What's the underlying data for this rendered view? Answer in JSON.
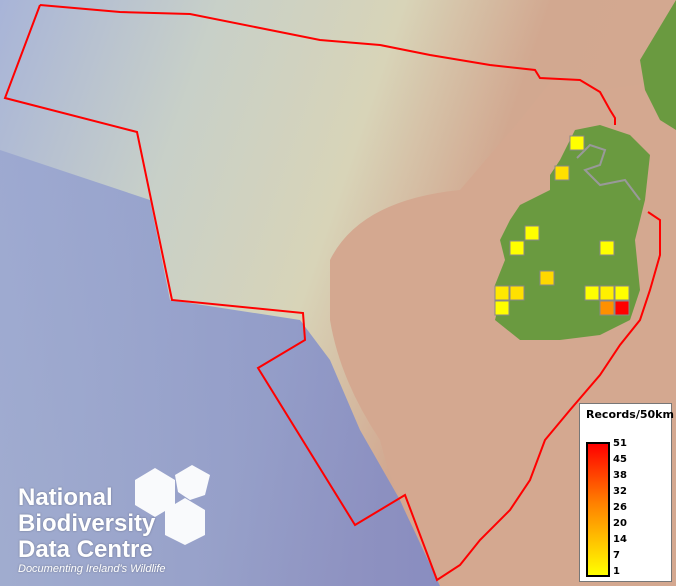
{
  "legend": {
    "title": "Records/50km",
    "ticks": [
      "51",
      "45",
      "38",
      "32",
      "26",
      "20",
      "14",
      "7",
      "1"
    ],
    "colors": {
      "low": "#ffff00",
      "mid": "#ff8000",
      "high": "#ff0000"
    }
  },
  "logo": {
    "line1": "National",
    "line2": "Biodiversity",
    "line3": "Data Centre",
    "tagline": "Documenting Ireland's Wildlife"
  },
  "records": [
    {
      "col": 5,
      "row": 1,
      "color": "#ffff00"
    },
    {
      "col": 4,
      "row": 3,
      "color": "#ffe000"
    },
    {
      "col": 2,
      "row": 7,
      "color": "#ffff00"
    },
    {
      "col": 1,
      "row": 8,
      "color": "#ffff00"
    },
    {
      "col": 7,
      "row": 8,
      "color": "#ffff00"
    },
    {
      "col": 3,
      "row": 10,
      "color": "#ffd800"
    },
    {
      "col": 0,
      "row": 11,
      "color": "#ffe800"
    },
    {
      "col": 1,
      "row": 11,
      "color": "#ffe000"
    },
    {
      "col": 0,
      "row": 12,
      "color": "#ffff00"
    },
    {
      "col": 6,
      "row": 11,
      "color": "#ffff00"
    },
    {
      "col": 7,
      "row": 11,
      "color": "#fff000"
    },
    {
      "col": 8,
      "row": 11,
      "color": "#ffff00"
    },
    {
      "col": 7,
      "row": 12,
      "color": "#ff9000"
    },
    {
      "col": 8,
      "row": 12,
      "color": "#ff0000"
    }
  ],
  "colors": {
    "boundary": "#ff0000",
    "ocean": "#8f9fc8",
    "land": "#d4a890",
    "ireland": "#6a9a40"
  }
}
